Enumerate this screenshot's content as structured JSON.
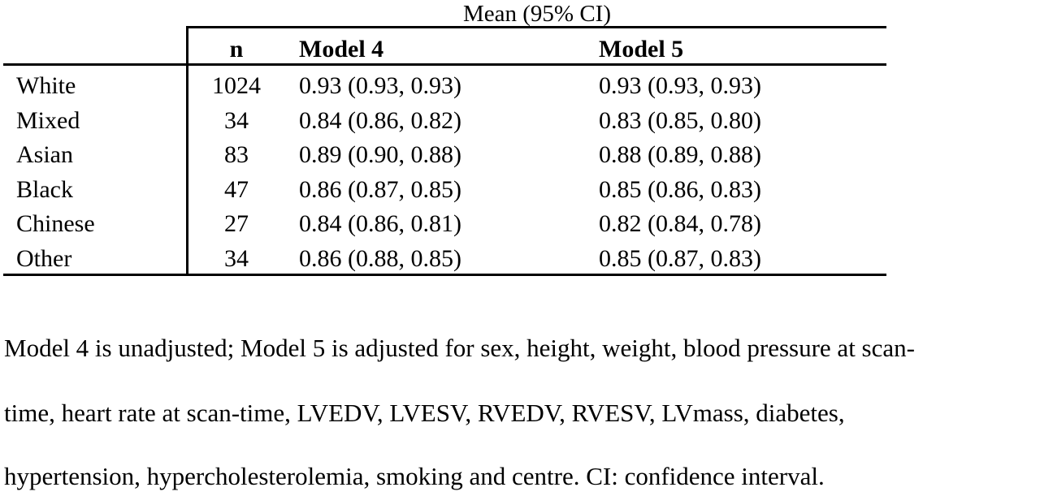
{
  "table": {
    "span_header": "Mean (95% CI)",
    "headers": {
      "label": "",
      "n": "n",
      "model4": "Model 4",
      "model5": "Model 5"
    },
    "rows": [
      {
        "label": "White",
        "n": "1024",
        "model4": "0.93 (0.93, 0.93)",
        "model5": "0.93 (0.93, 0.93)"
      },
      {
        "label": "Mixed",
        "n": "34",
        "model4": "0.84 (0.86, 0.82)",
        "model5": "0.83 (0.85, 0.80)"
      },
      {
        "label": "Asian",
        "n": "83",
        "model4": "0.89 (0.90, 0.88)",
        "model5": "0.88 (0.89, 0.88)"
      },
      {
        "label": "Black",
        "n": "47",
        "model4": "0.86 (0.87, 0.85)",
        "model5": "0.85 (0.86, 0.83)"
      },
      {
        "label": "Chinese",
        "n": "27",
        "model4": "0.84 (0.86, 0.81)",
        "model5": "0.82 (0.84, 0.78)"
      },
      {
        "label": "Other",
        "n": "34",
        "model4": "0.86 (0.88, 0.85)",
        "model5": "0.85 (0.87, 0.83)"
      }
    ]
  },
  "footnote": {
    "line1": "Model 4 is unadjusted; Model 5 is adjusted for sex, height, weight, blood pressure at scan-",
    "line2": "time, heart rate at scan-time, LVEDV, LVESV, RVEDV, RVESV, LVmass, diabetes,",
    "line3": "hypertension, hypercholesterolemia, smoking and centre. CI: confidence interval."
  }
}
